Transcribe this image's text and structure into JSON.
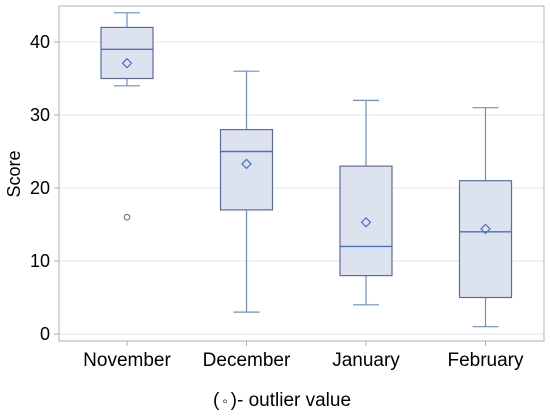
{
  "chart_data": {
    "type": "box",
    "ylabel": "Score",
    "ylim": [
      0,
      45
    ],
    "yticks": [
      0,
      10,
      20,
      30,
      40
    ],
    "grid": true,
    "categories": [
      "November",
      "December",
      "January",
      "February"
    ],
    "boxes": [
      {
        "category": "November",
        "min": 34,
        "q1": 35,
        "median": 39,
        "q3": 42,
        "max": 44,
        "mean": 37.1,
        "outliers": [
          16
        ]
      },
      {
        "category": "December",
        "min": 3,
        "q1": 17,
        "median": 25,
        "q3": 28,
        "max": 36,
        "mean": 23.3,
        "outliers": []
      },
      {
        "category": "January",
        "min": 4,
        "q1": 8,
        "median": 12,
        "q3": 23,
        "max": 32,
        "mean": 15.3,
        "outliers": []
      },
      {
        "category": "February",
        "min": 1,
        "q1": 5,
        "median": 14,
        "q3": 21,
        "max": 31,
        "mean": 14.4,
        "outliers": []
      }
    ],
    "colors": {
      "box_fill": "#dde3ee",
      "box_stroke": "#5b6e9a",
      "median_line": "#4a6fc4",
      "whisker": "#6a8ed0",
      "mean_marker": "#4a6fc4",
      "outlier": "#666666",
      "grid": "#e6e6e6",
      "frame": "#b0b0b0"
    }
  },
  "footnote": {
    "symbol": "◦",
    "open": "(",
    "text": ")- outlier value"
  }
}
